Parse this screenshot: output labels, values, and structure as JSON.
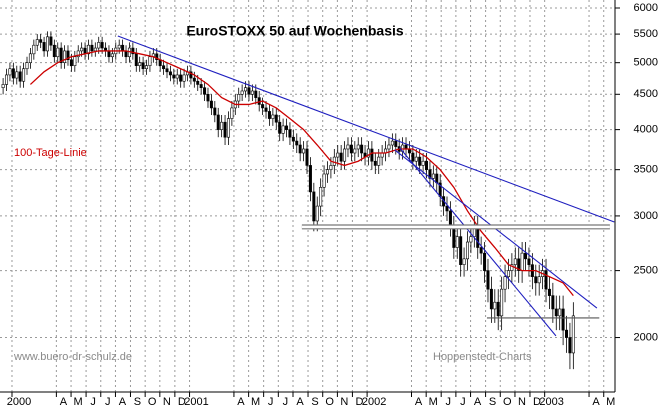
{
  "chart_data": {
    "type": "candlestick",
    "title": "EuroSTOXX 50 auf Wochenbasis",
    "log_scale": true,
    "grid": true,
    "up_color": "#ffffff",
    "down_color": "#000000",
    "xlim": [
      -0.91,
      179.2
    ],
    "ylim": [
      1668,
      6162
    ],
    "yticks": [
      2000,
      2500,
      3000,
      3500,
      4000,
      4500,
      5000,
      5500,
      6000
    ],
    "xticks": [
      {
        "value": 2.6,
        "label": "2000"
      },
      {
        "value": 15.6,
        "label": "A"
      },
      {
        "value": 19.9,
        "label": "M"
      },
      {
        "value": 24.3,
        "label": "J"
      },
      {
        "value": 28.6,
        "label": "J"
      },
      {
        "value": 32.9,
        "label": "A"
      },
      {
        "value": 37.3,
        "label": "S"
      },
      {
        "value": 41.6,
        "label": "O"
      },
      {
        "value": 45.9,
        "label": "N"
      },
      {
        "value": 50.3,
        "label": "D"
      },
      {
        "value": 54.6,
        "label": "2001"
      },
      {
        "value": 67.6,
        "label": "A"
      },
      {
        "value": 71.9,
        "label": "M"
      },
      {
        "value": 76.3,
        "label": "J"
      },
      {
        "value": 80.6,
        "label": "J"
      },
      {
        "value": 84.9,
        "label": "A"
      },
      {
        "value": 89.3,
        "label": "S"
      },
      {
        "value": 93.6,
        "label": "O"
      },
      {
        "value": 97.9,
        "label": "N"
      },
      {
        "value": 102.3,
        "label": "D"
      },
      {
        "value": 106.6,
        "label": "2002"
      },
      {
        "value": 119.6,
        "label": "A"
      },
      {
        "value": 123.9,
        "label": "M"
      },
      {
        "value": 128.3,
        "label": "J"
      },
      {
        "value": 132.6,
        "label": "J"
      },
      {
        "value": 136.9,
        "label": "A"
      },
      {
        "value": 141.3,
        "label": "S"
      },
      {
        "value": 145.6,
        "label": "O"
      },
      {
        "value": 149.9,
        "label": "N"
      },
      {
        "value": 154.3,
        "label": "D"
      },
      {
        "value": 158.6,
        "label": "2003"
      },
      {
        "value": 171.6,
        "label": "A"
      },
      {
        "value": 175.9,
        "label": "M"
      }
    ],
    "x": [
      0,
      1,
      2,
      3,
      4,
      5,
      6,
      7,
      8,
      9,
      10,
      11,
      12,
      13,
      14,
      15,
      16,
      17,
      18,
      19,
      20,
      21,
      22,
      23,
      24,
      25,
      26,
      27,
      28,
      29,
      30,
      31,
      32,
      33,
      34,
      35,
      36,
      37,
      38,
      39,
      40,
      41,
      42,
      43,
      44,
      45,
      46,
      47,
      48,
      49,
      50,
      51,
      52,
      53,
      54,
      55,
      56,
      57,
      58,
      59,
      60,
      61,
      62,
      63,
      64,
      65,
      66,
      67,
      68,
      69,
      70,
      71,
      72,
      73,
      74,
      75,
      76,
      77,
      78,
      79,
      80,
      81,
      82,
      83,
      84,
      85,
      86,
      87,
      88,
      89,
      90,
      91,
      92,
      93,
      94,
      95,
      96,
      97,
      98,
      99,
      100,
      101,
      102,
      103,
      104,
      105,
      106,
      107,
      108,
      109,
      110,
      111,
      112,
      113,
      114,
      115,
      116,
      117,
      118,
      119,
      120,
      121,
      122,
      123,
      124,
      125,
      126,
      127,
      128,
      129,
      130,
      131,
      132,
      133,
      134,
      135,
      136,
      137,
      138,
      139,
      140,
      141,
      142,
      143,
      144,
      145,
      146,
      147,
      148,
      149,
      150,
      151,
      152,
      153,
      154,
      155,
      156,
      157,
      158,
      159,
      160,
      161,
      162,
      163,
      164,
      165,
      166,
      167
    ],
    "open": [
      4600,
      4650,
      4800,
      4900,
      4750,
      4850,
      4700,
      4900,
      5000,
      5150,
      5300,
      5400,
      5350,
      5200,
      5450,
      5300,
      5100,
      5250,
      5000,
      5200,
      5050,
      4950,
      5100,
      5200,
      5250,
      5150,
      5300,
      5200,
      5250,
      5350,
      5250,
      5200,
      5100,
      5150,
      5250,
      5300,
      5200,
      5100,
      5250,
      5150,
      4950,
      5000,
      4900,
      4950,
      5100,
      5150,
      5050,
      4950,
      4900,
      4850,
      4800,
      4750,
      4800,
      4700,
      4800,
      4850,
      4750,
      4700,
      4650,
      4600,
      4500,
      4400,
      4300,
      4200,
      4000,
      4100,
      3900,
      4150,
      4300,
      4400,
      4500,
      4550,
      4600,
      4500,
      4550,
      4450,
      4350,
      4300,
      4250,
      4150,
      4200,
      4100,
      3950,
      4050,
      4000,
      3900,
      3850,
      3800,
      3700,
      3750,
      3550,
      3250,
      2950,
      3100,
      3300,
      3450,
      3500,
      3550,
      3650,
      3700,
      3600,
      3750,
      3800,
      3700,
      3750,
      3800,
      3700,
      3650,
      3750,
      3600,
      3550,
      3650,
      3700,
      3750,
      3800,
      3850,
      3780,
      3720,
      3800,
      3750,
      3700,
      3600,
      3650,
      3550,
      3600,
      3500,
      3400,
      3450,
      3350,
      3200,
      3100,
      3050,
      2900,
      2700,
      2800,
      2550,
      2600,
      2750,
      2800,
      2900,
      2700,
      2650,
      2500,
      2350,
      2200,
      2250,
      2150,
      2350,
      2450,
      2500,
      2550,
      2600,
      2500,
      2650,
      2600,
      2550,
      2450,
      2400,
      2450,
      2500,
      2350,
      2300,
      2200,
      2150,
      2200,
      2050,
      2000,
      1900
    ],
    "high": [
      4750,
      4900,
      5000,
      5000,
      4950,
      4950,
      5000,
      5100,
      5250,
      5400,
      5500,
      5500,
      5450,
      5550,
      5550,
      5400,
      5350,
      5350,
      5300,
      5300,
      5150,
      5200,
      5300,
      5350,
      5350,
      5400,
      5400,
      5350,
      5450,
      5450,
      5350,
      5300,
      5250,
      5350,
      5400,
      5400,
      5300,
      5350,
      5350,
      5250,
      5100,
      5100,
      5050,
      5200,
      5250,
      5250,
      5150,
      5050,
      5000,
      4950,
      4900,
      4900,
      4900,
      4900,
      4950,
      4950,
      4850,
      4800,
      4750,
      4700,
      4600,
      4500,
      4400,
      4300,
      4200,
      4200,
      4250,
      4400,
      4500,
      4600,
      4650,
      4700,
      4700,
      4650,
      4650,
      4550,
      4450,
      4400,
      4350,
      4300,
      4300,
      4200,
      4150,
      4150,
      4100,
      4000,
      3950,
      3900,
      3850,
      3850,
      3650,
      3350,
      3200,
      3400,
      3550,
      3600,
      3650,
      3750,
      3800,
      3800,
      3850,
      3900,
      3900,
      3850,
      3900,
      3900,
      3800,
      3850,
      3850,
      3700,
      3750,
      3800,
      3850,
      3900,
      3950,
      3950,
      3880,
      3900,
      3900,
      3850,
      3800,
      3750,
      3750,
      3700,
      3700,
      3600,
      3550,
      3550,
      3450,
      3300,
      3200,
      3150,
      3000,
      2900,
      2900,
      2700,
      2850,
      2900,
      3000,
      3000,
      2800,
      2750,
      2600,
      2450,
      2350,
      2350,
      2450,
      2550,
      2600,
      2650,
      2700,
      2700,
      2750,
      2750,
      2700,
      2650,
      2550,
      2550,
      2600,
      2600,
      2450,
      2400,
      2300,
      2300,
      2300,
      2150,
      2100,
      2250
    ],
    "low": [
      4500,
      4550,
      4700,
      4650,
      4650,
      4600,
      4600,
      4800,
      4900,
      5050,
      5200,
      5250,
      5100,
      5100,
      5200,
      5000,
      5000,
      4900,
      4900,
      4950,
      4850,
      4850,
      5000,
      5100,
      5050,
      5050,
      5100,
      5100,
      5150,
      5150,
      5100,
      5000,
      5000,
      5050,
      5150,
      5100,
      5000,
      5000,
      5050,
      4850,
      4850,
      4800,
      4800,
      4850,
      5000,
      4950,
      4850,
      4800,
      4750,
      4700,
      4650,
      4650,
      4600,
      4600,
      4700,
      4650,
      4600,
      4550,
      4500,
      4400,
      4300,
      4200,
      4100,
      3900,
      3900,
      3800,
      3800,
      4050,
      4200,
      4300,
      4400,
      4450,
      4400,
      4400,
      4350,
      4250,
      4200,
      4150,
      4050,
      4050,
      4000,
      3850,
      3850,
      3900,
      3800,
      3750,
      3700,
      3600,
      3600,
      3450,
      3150,
      2850,
      2850,
      3000,
      3200,
      3350,
      3400,
      3450,
      3550,
      3500,
      3500,
      3650,
      3600,
      3600,
      3650,
      3600,
      3550,
      3550,
      3500,
      3450,
      3450,
      3550,
      3600,
      3650,
      3700,
      3680,
      3620,
      3620,
      3650,
      3600,
      3500,
      3500,
      3450,
      3450,
      3400,
      3300,
      3300,
      3250,
      3100,
      3000,
      2950,
      2800,
      2600,
      2600,
      2450,
      2450,
      2500,
      2650,
      2700,
      2600,
      2550,
      2400,
      2250,
      2100,
      2100,
      2050,
      2050,
      2250,
      2350,
      2400,
      2450,
      2400,
      2400,
      2500,
      2450,
      2350,
      2300,
      2300,
      2350,
      2250,
      2200,
      2100,
      2050,
      2050,
      1950,
      1900,
      1800,
      1800
    ],
    "close": [
      4650,
      4800,
      4900,
      4750,
      4850,
      4700,
      4900,
      5000,
      5150,
      5300,
      5400,
      5350,
      5200,
      5450,
      5300,
      5100,
      5250,
      5000,
      5200,
      5050,
      4950,
      5100,
      5200,
      5250,
      5150,
      5300,
      5200,
      5250,
      5350,
      5250,
      5200,
      5100,
      5150,
      5250,
      5300,
      5200,
      5100,
      5250,
      5150,
      4950,
      5000,
      4900,
      4950,
      5100,
      5150,
      5050,
      4950,
      4900,
      4850,
      4800,
      4750,
      4800,
      4700,
      4800,
      4850,
      4750,
      4700,
      4650,
      4600,
      4500,
      4400,
      4300,
      4200,
      4000,
      4100,
      3900,
      4150,
      4300,
      4400,
      4500,
      4550,
      4600,
      4500,
      4550,
      4450,
      4350,
      4300,
      4250,
      4150,
      4200,
      4100,
      3950,
      4050,
      4000,
      3900,
      3850,
      3800,
      3700,
      3750,
      3550,
      3250,
      2950,
      3100,
      3300,
      3450,
      3500,
      3550,
      3650,
      3700,
      3600,
      3750,
      3800,
      3700,
      3750,
      3800,
      3700,
      3650,
      3750,
      3600,
      3550,
      3650,
      3700,
      3750,
      3800,
      3850,
      3780,
      3720,
      3800,
      3750,
      3700,
      3600,
      3650,
      3550,
      3600,
      3500,
      3400,
      3450,
      3350,
      3200,
      3100,
      3050,
      2900,
      2700,
      2800,
      2550,
      2600,
      2750,
      2800,
      2900,
      2700,
      2650,
      2500,
      2350,
      2200,
      2250,
      2150,
      2350,
      2450,
      2500,
      2550,
      2600,
      2500,
      2650,
      2600,
      2550,
      2450,
      2400,
      2450,
      2500,
      2350,
      2300,
      2200,
      2150,
      2200,
      2050,
      2000,
      1900,
      2150
    ],
    "series": [
      {
        "name": "100-Tage-Linie",
        "color": "#cc0000",
        "x": [
          8,
          12,
          16,
          20,
          24,
          28,
          32,
          36,
          40,
          44,
          48,
          52,
          56,
          60,
          64,
          68,
          72,
          76,
          80,
          84,
          88,
          92,
          96,
          100,
          104,
          108,
          112,
          116,
          120,
          124,
          128,
          132,
          136,
          140,
          144,
          148,
          152,
          156,
          160,
          164,
          167
        ],
        "values": [
          4650,
          4850,
          5000,
          5100,
          5150,
          5200,
          5200,
          5200,
          5150,
          5100,
          5000,
          4900,
          4800,
          4650,
          4450,
          4350,
          4350,
          4400,
          4300,
          4150,
          4000,
          3800,
          3600,
          3550,
          3600,
          3700,
          3700,
          3750,
          3750,
          3650,
          3500,
          3300,
          3050,
          2850,
          2700,
          2550,
          2500,
          2500,
          2450,
          2400,
          2300
        ]
      }
    ],
    "trendlines": [
      {
        "x": [
          33.6,
          179
        ],
        "values": [
          5465,
          2940
        ],
        "color": "#1f1fbf"
      },
      {
        "x": [
          114.7,
          173.9
        ],
        "values": [
          3738,
          2207
        ],
        "color": "#1f1fbf"
      },
      {
        "x": [
          116.1,
          161.9
        ],
        "values": [
          3767,
          2011
        ],
        "color": "#1f1fbf"
      },
      {
        "x": [
          87.5,
          177.7
        ],
        "values": [
          2892,
          2892
        ],
        "color": "#777777",
        "style": "double"
      },
      {
        "x": [
          141.7,
          174.6
        ],
        "values": [
          2135,
          2135
        ],
        "color": "#555555"
      }
    ],
    "annotations": [
      {
        "text": "www.buero-dr-schulz.de",
        "color": "#8a8a8a"
      },
      {
        "text": "Hoppenstedt-Charts",
        "color": "#8a8a8a"
      }
    ]
  }
}
